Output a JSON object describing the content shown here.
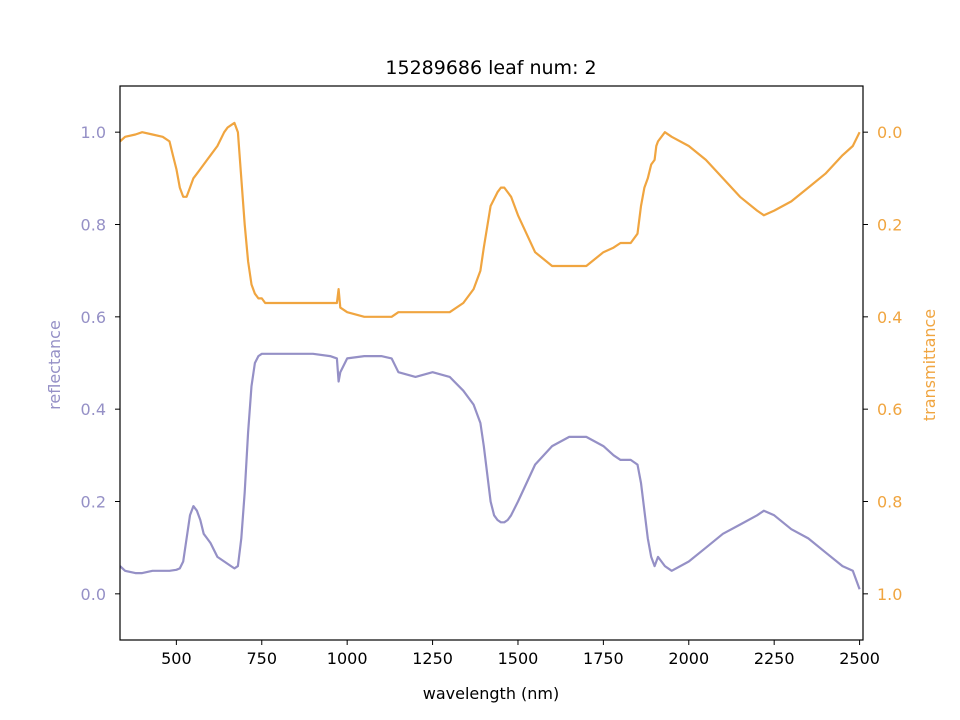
{
  "chart_data": {
    "type": "line",
    "title": "15289686 leaf num: 2",
    "xlabel": "wavelength (nm)",
    "ylabel_left": "reflectance",
    "ylabel_right": "transmittance",
    "xlim": [
      335,
      2510
    ],
    "ylim_left": [
      -0.1,
      1.1
    ],
    "ylim_right": [
      1.1,
      -0.1
    ],
    "right_axis_inverted": true,
    "grid": false,
    "colors": {
      "reflectance": "#9590c6",
      "transmittance": "#f0a540"
    },
    "x_ticks": [
      "500",
      "750",
      "1000",
      "1250",
      "1500",
      "1750",
      "2000",
      "2250",
      "2500"
    ],
    "x_tick_values": [
      500,
      750,
      1000,
      1250,
      1500,
      1750,
      2000,
      2250,
      2500
    ],
    "left_ticks": [
      "0.0",
      "0.2",
      "0.4",
      "0.6",
      "0.8",
      "1.0"
    ],
    "left_tick_values": [
      0.0,
      0.2,
      0.4,
      0.6,
      0.8,
      1.0
    ],
    "right_ticks": [
      "0.0",
      "0.2",
      "0.4",
      "0.6",
      "0.8",
      "1.0"
    ],
    "right_tick_values": [
      0.0,
      0.2,
      0.4,
      0.6,
      0.8,
      1.0
    ],
    "series": [
      {
        "axis": "left",
        "x": [
          335,
          350,
          380,
          400,
          430,
          460,
          480,
          500,
          510,
          520,
          530,
          540,
          550,
          560,
          570,
          580,
          590,
          600,
          620,
          640,
          660,
          670,
          680,
          690,
          700,
          710,
          720,
          730,
          740,
          750,
          760,
          800,
          850,
          900,
          950,
          970,
          975,
          980,
          1000,
          1050,
          1100,
          1130,
          1150,
          1200,
          1250,
          1300,
          1340,
          1370,
          1390,
          1400,
          1410,
          1420,
          1430,
          1440,
          1450,
          1460,
          1470,
          1480,
          1500,
          1550,
          1600,
          1650,
          1700,
          1750,
          1780,
          1800,
          1830,
          1850,
          1860,
          1870,
          1880,
          1890,
          1900,
          1910,
          1930,
          1950,
          2000,
          2050,
          2100,
          2150,
          2200,
          2220,
          2250,
          2300,
          2350,
          2400,
          2450,
          2480,
          2500
        ],
        "y": [
          0.06,
          0.05,
          0.045,
          0.045,
          0.05,
          0.05,
          0.05,
          0.052,
          0.055,
          0.07,
          0.12,
          0.17,
          0.19,
          0.18,
          0.16,
          0.13,
          0.12,
          0.11,
          0.08,
          0.07,
          0.06,
          0.055,
          0.06,
          0.12,
          0.22,
          0.35,
          0.45,
          0.5,
          0.515,
          0.52,
          0.52,
          0.52,
          0.52,
          0.52,
          0.515,
          0.51,
          0.46,
          0.48,
          0.51,
          0.515,
          0.515,
          0.51,
          0.48,
          0.47,
          0.48,
          0.47,
          0.44,
          0.41,
          0.37,
          0.32,
          0.26,
          0.2,
          0.17,
          0.16,
          0.155,
          0.155,
          0.16,
          0.17,
          0.2,
          0.28,
          0.32,
          0.34,
          0.34,
          0.32,
          0.3,
          0.29,
          0.29,
          0.28,
          0.24,
          0.18,
          0.12,
          0.08,
          0.06,
          0.08,
          0.06,
          0.05,
          0.07,
          0.1,
          0.13,
          0.15,
          0.17,
          0.18,
          0.17,
          0.14,
          0.12,
          0.09,
          0.06,
          0.05,
          0.01
        ]
      },
      {
        "axis": "right",
        "x": [
          335,
          350,
          380,
          400,
          430,
          460,
          480,
          490,
          500,
          510,
          520,
          530,
          540,
          550,
          560,
          570,
          580,
          590,
          600,
          620,
          640,
          650,
          660,
          670,
          680,
          690,
          700,
          710,
          720,
          730,
          740,
          750,
          760,
          780,
          800,
          850,
          900,
          950,
          970,
          975,
          980,
          1000,
          1050,
          1100,
          1130,
          1150,
          1200,
          1250,
          1300,
          1340,
          1370,
          1390,
          1400,
          1420,
          1440,
          1450,
          1460,
          1480,
          1500,
          1550,
          1600,
          1650,
          1700,
          1750,
          1780,
          1800,
          1830,
          1850,
          1860,
          1870,
          1880,
          1890,
          1900,
          1905,
          1910,
          1930,
          1950,
          2000,
          2050,
          2100,
          2150,
          2200,
          2220,
          2250,
          2300,
          2350,
          2400,
          2450,
          2480,
          2500
        ],
        "y": [
          0.02,
          0.01,
          0.005,
          0.0,
          0.005,
          0.01,
          0.02,
          0.05,
          0.08,
          0.12,
          0.14,
          0.14,
          0.12,
          0.1,
          0.09,
          0.08,
          0.07,
          0.06,
          0.05,
          0.03,
          0.0,
          -0.01,
          -0.015,
          -0.02,
          0.0,
          0.1,
          0.2,
          0.28,
          0.33,
          0.35,
          0.36,
          0.36,
          0.37,
          0.37,
          0.37,
          0.37,
          0.37,
          0.37,
          0.37,
          0.34,
          0.38,
          0.39,
          0.4,
          0.4,
          0.4,
          0.39,
          0.39,
          0.39,
          0.39,
          0.37,
          0.34,
          0.3,
          0.25,
          0.16,
          0.13,
          0.12,
          0.12,
          0.14,
          0.18,
          0.26,
          0.29,
          0.29,
          0.29,
          0.26,
          0.25,
          0.24,
          0.24,
          0.22,
          0.16,
          0.12,
          0.1,
          0.07,
          0.06,
          0.03,
          0.02,
          0.0,
          0.01,
          0.03,
          0.06,
          0.1,
          0.14,
          0.17,
          0.18,
          0.17,
          0.15,
          0.12,
          0.09,
          0.05,
          0.03,
          0.0
        ]
      }
    ]
  }
}
